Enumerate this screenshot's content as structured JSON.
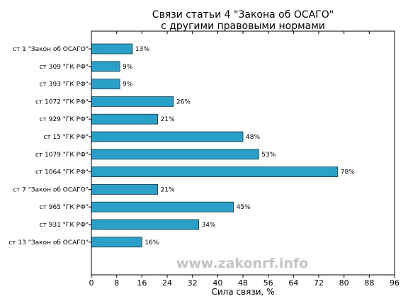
{
  "chart_data": {
    "type": "bar",
    "orientation": "horizontal",
    "title": "Связи статьи 4 \"Закона об ОСАГО\"",
    "subtitle": "с другими правовыми нормами",
    "xlabel": "Сила связи, %",
    "ylabel": "",
    "xlim": [
      0,
      96
    ],
    "xticks": [
      0,
      8,
      16,
      24,
      32,
      40,
      48,
      56,
      64,
      72,
      80,
      88,
      96
    ],
    "grid": false,
    "legend": false,
    "bar_color": "#2aa0c8",
    "bar_edge_color": "#1a3a48",
    "categories": [
      "ст 1 \"Закон об ОСАГО\"",
      "ст 309 \"ГК РФ\"",
      "ст 393 \"ГК РФ\"",
      "ст 1072 \"ГК РФ\"",
      "ст 929 \"ГК РФ\"",
      "ст 15 \"ГК РФ\"",
      "ст 1079 \"ГК РФ\"",
      "ст 1064 \"ГК РФ\"",
      "ст 7 \"Закон об ОСАГО\"",
      "ст 965 \"ГК РФ\"",
      "ст 931 \"ГК РФ\"",
      "ст 13 \"Закон об ОСАГО\""
    ],
    "values": [
      13,
      9,
      9,
      26,
      21,
      48,
      53,
      78,
      21,
      45,
      34,
      16
    ],
    "value_labels": [
      "13%",
      "9%",
      "9%",
      "26%",
      "21%",
      "48%",
      "53%",
      "78%",
      "21%",
      "45%",
      "34%",
      "16%"
    ]
  },
  "watermark": "www.zakonrf.info"
}
